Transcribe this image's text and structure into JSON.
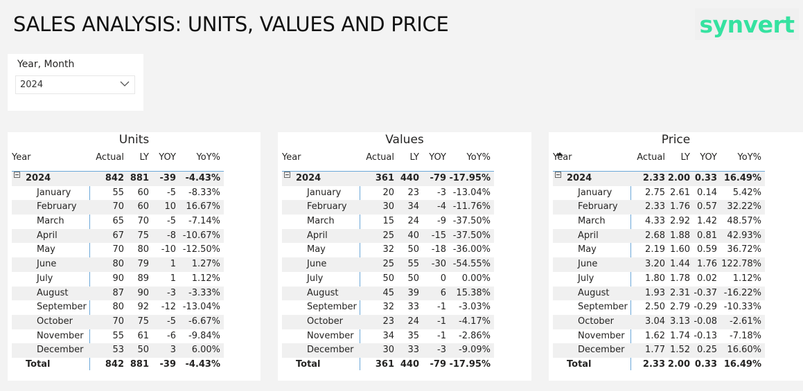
{
  "header": {
    "title": "SALES ANALYSIS: UNITS, VALUES AND PRICE",
    "logo_text": "synvert",
    "logo_color": "#35e2a0"
  },
  "slicer": {
    "label": "Year, Month",
    "value": "2024"
  },
  "columns": {
    "year": "Year",
    "actual": "Actual",
    "ly": "LY",
    "yoy": "YOY",
    "pct": "YoY%"
  },
  "tables": [
    {
      "title": "Units",
      "year_row": {
        "label": "2024",
        "actual": "842",
        "ly": "881",
        "yoy": "-39",
        "pct": "-4.43%"
      },
      "rows": [
        {
          "label": "January",
          "actual": "55",
          "ly": "60",
          "yoy": "-5",
          "pct": "-8.33%"
        },
        {
          "label": "February",
          "actual": "70",
          "ly": "60",
          "yoy": "10",
          "pct": "16.67%"
        },
        {
          "label": "March",
          "actual": "65",
          "ly": "70",
          "yoy": "-5",
          "pct": "-7.14%"
        },
        {
          "label": "April",
          "actual": "67",
          "ly": "75",
          "yoy": "-8",
          "pct": "-10.67%"
        },
        {
          "label": "May",
          "actual": "70",
          "ly": "80",
          "yoy": "-10",
          "pct": "-12.50%"
        },
        {
          "label": "June",
          "actual": "80",
          "ly": "79",
          "yoy": "1",
          "pct": "1.27%"
        },
        {
          "label": "July",
          "actual": "90",
          "ly": "89",
          "yoy": "1",
          "pct": "1.12%"
        },
        {
          "label": "August",
          "actual": "87",
          "ly": "90",
          "yoy": "-3",
          "pct": "-3.33%"
        },
        {
          "label": "September",
          "actual": "80",
          "ly": "92",
          "yoy": "-12",
          "pct": "-13.04%"
        },
        {
          "label": "October",
          "actual": "70",
          "ly": "75",
          "yoy": "-5",
          "pct": "-6.67%"
        },
        {
          "label": "November",
          "actual": "55",
          "ly": "61",
          "yoy": "-6",
          "pct": "-9.84%"
        },
        {
          "label": "December",
          "actual": "53",
          "ly": "50",
          "yoy": "3",
          "pct": "6.00%"
        }
      ],
      "total_row": {
        "label": "Total",
        "actual": "842",
        "ly": "881",
        "yoy": "-39",
        "pct": "-4.43%"
      }
    },
    {
      "title": "Values",
      "year_row": {
        "label": "2024",
        "actual": "361",
        "ly": "440",
        "yoy": "-79",
        "pct": "-17.95%"
      },
      "rows": [
        {
          "label": "January",
          "actual": "20",
          "ly": "23",
          "yoy": "-3",
          "pct": "-13.04%"
        },
        {
          "label": "February",
          "actual": "30",
          "ly": "34",
          "yoy": "-4",
          "pct": "-11.76%"
        },
        {
          "label": "March",
          "actual": "15",
          "ly": "24",
          "yoy": "-9",
          "pct": "-37.50%"
        },
        {
          "label": "April",
          "actual": "25",
          "ly": "40",
          "yoy": "-15",
          "pct": "-37.50%"
        },
        {
          "label": "May",
          "actual": "32",
          "ly": "50",
          "yoy": "-18",
          "pct": "-36.00%"
        },
        {
          "label": "June",
          "actual": "25",
          "ly": "55",
          "yoy": "-30",
          "pct": "-54.55%"
        },
        {
          "label": "July",
          "actual": "50",
          "ly": "50",
          "yoy": "0",
          "pct": "0.00%"
        },
        {
          "label": "August",
          "actual": "45",
          "ly": "39",
          "yoy": "6",
          "pct": "15.38%"
        },
        {
          "label": "September",
          "actual": "32",
          "ly": "33",
          "yoy": "-1",
          "pct": "-3.03%"
        },
        {
          "label": "October",
          "actual": "23",
          "ly": "24",
          "yoy": "-1",
          "pct": "-4.17%"
        },
        {
          "label": "November",
          "actual": "34",
          "ly": "35",
          "yoy": "-1",
          "pct": "-2.86%"
        },
        {
          "label": "December",
          "actual": "30",
          "ly": "33",
          "yoy": "-3",
          "pct": "-9.09%"
        }
      ],
      "total_row": {
        "label": "Total",
        "actual": "361",
        "ly": "440",
        "yoy": "-79",
        "pct": "-17.95%"
      }
    },
    {
      "title": "Price",
      "year_row": {
        "label": "2024",
        "actual": "2.33",
        "ly": "2.00",
        "yoy": "0.33",
        "pct": "16.49%"
      },
      "rows": [
        {
          "label": "January",
          "actual": "2.75",
          "ly": "2.61",
          "yoy": "0.14",
          "pct": "5.42%"
        },
        {
          "label": "February",
          "actual": "2.33",
          "ly": "1.76",
          "yoy": "0.57",
          "pct": "32.22%"
        },
        {
          "label": "March",
          "actual": "4.33",
          "ly": "2.92",
          "yoy": "1.42",
          "pct": "48.57%"
        },
        {
          "label": "April",
          "actual": "2.68",
          "ly": "1.88",
          "yoy": "0.81",
          "pct": "42.93%"
        },
        {
          "label": "May",
          "actual": "2.19",
          "ly": "1.60",
          "yoy": "0.59",
          "pct": "36.72%"
        },
        {
          "label": "June",
          "actual": "3.20",
          "ly": "1.44",
          "yoy": "1.76",
          "pct": "122.78%"
        },
        {
          "label": "July",
          "actual": "1.80",
          "ly": "1.78",
          "yoy": "0.02",
          "pct": "1.12%"
        },
        {
          "label": "August",
          "actual": "1.93",
          "ly": "2.31",
          "yoy": "-0.37",
          "pct": "-16.22%"
        },
        {
          "label": "September",
          "actual": "2.50",
          "ly": "2.79",
          "yoy": "-0.29",
          "pct": "-10.33%"
        },
        {
          "label": "October",
          "actual": "3.04",
          "ly": "3.13",
          "yoy": "-0.08",
          "pct": "-2.61%"
        },
        {
          "label": "November",
          "actual": "1.62",
          "ly": "1.74",
          "yoy": "-0.13",
          "pct": "-7.18%"
        },
        {
          "label": "December",
          "actual": "1.77",
          "ly": "1.52",
          "yoy": "0.25",
          "pct": "16.60%"
        }
      ],
      "total_row": {
        "label": "Total",
        "actual": "2.33",
        "ly": "2.00",
        "yoy": "0.33",
        "pct": "16.49%"
      }
    }
  ]
}
